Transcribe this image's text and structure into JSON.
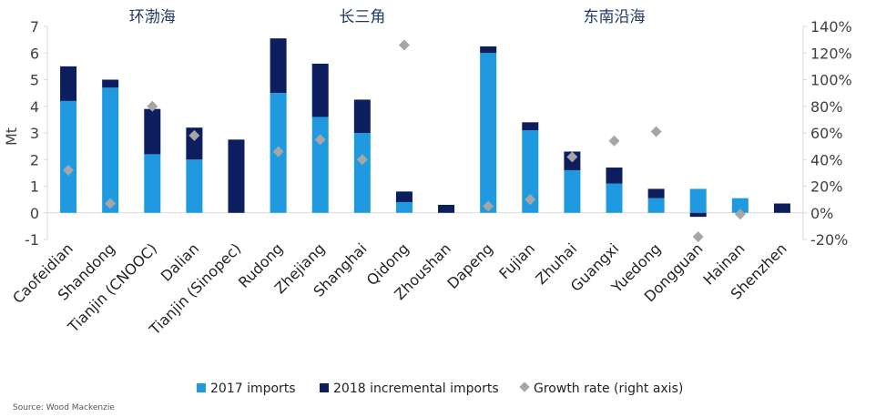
{
  "chart_data": {
    "type": "bar",
    "stacked": true,
    "ylabel": "Mt",
    "y_left": {
      "min": -1,
      "max": 7,
      "ticks": [
        -1,
        0,
        1,
        2,
        3,
        4,
        5,
        6,
        7
      ]
    },
    "y_right": {
      "min": -20,
      "max": 140,
      "ticks": [
        "-20%",
        "0%",
        "20%",
        "40%",
        "60%",
        "80%",
        "100%",
        "120%",
        "140%"
      ]
    },
    "categories": [
      "Caofeidian",
      "Shandong",
      "Tianjin (CNOOC)",
      "Dalian",
      "Tianjin (Sinopec)",
      "Rudong",
      "Zhejiang",
      "Shanghai",
      "Qidong",
      "Zhoushan",
      "Dapeng",
      "Fujian",
      "Zhuhai",
      "Guangxi",
      "Yuedong",
      "Dongguan",
      "Hainan",
      "Shenzhen"
    ],
    "regions": [
      {
        "label": "环渤海",
        "center_index": 2
      },
      {
        "label": "长三角",
        "center_index": 7
      },
      {
        "label": "东南沿海",
        "center_index": 13
      }
    ],
    "series": [
      {
        "name": "2017 imports",
        "color": "#1f9ae0",
        "kind": "bar",
        "values": [
          4.2,
          4.7,
          2.2,
          2.0,
          0,
          4.5,
          3.6,
          3.0,
          0.4,
          0,
          6.0,
          3.1,
          1.6,
          1.1,
          0.55,
          0.9,
          0.55,
          0
        ]
      },
      {
        "name": "2018 incremental imports",
        "color": "#0d1e5e",
        "kind": "bar",
        "values": [
          1.3,
          0.3,
          1.7,
          1.2,
          2.75,
          2.05,
          2.0,
          1.25,
          0.4,
          0.3,
          0.25,
          0.3,
          0.7,
          0.6,
          0.35,
          -0.15,
          0,
          0.35
        ]
      },
      {
        "name": "Growth rate (right axis)",
        "color": "#a6a6a6",
        "kind": "marker",
        "values": [
          32,
          7,
          80,
          58,
          null,
          46,
          55,
          40,
          126,
          null,
          5,
          10,
          42,
          54,
          61,
          -18,
          -1,
          null
        ]
      }
    ],
    "legend_position": "bottom",
    "source": "Source: Wood Mackenzie"
  }
}
